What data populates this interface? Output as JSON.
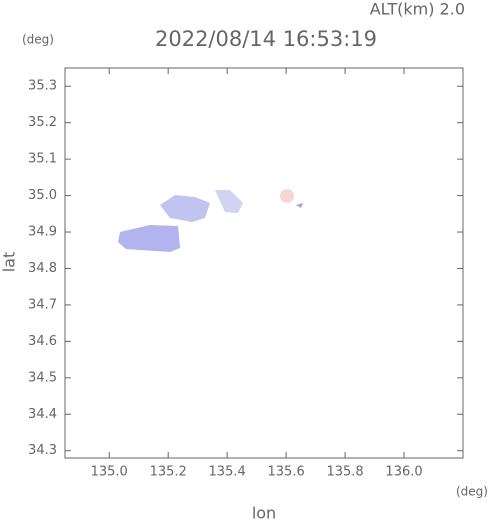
{
  "chart_data": {
    "type": "map",
    "title": "2022/08/14 16:53:19",
    "subtitle": "ALT(km) 2.0",
    "x_label": "lon",
    "y_label": "lat",
    "x_unit": "(deg)",
    "y_unit": "(deg)",
    "xlim": [
      134.85,
      136.2
    ],
    "ylim": [
      34.28,
      35.35
    ],
    "xticks": [
      {
        "value": 135,
        "label": "135.0"
      },
      135.2,
      135.4,
      135.6,
      135.8,
      {
        "value": 136,
        "label": "136.0"
      }
    ],
    "yticks": [
      34.3,
      34.4,
      34.5,
      34.6,
      34.7,
      34.8,
      34.9,
      {
        "value": 35,
        "label": "35.0"
      },
      35.1,
      35.2,
      35.3
    ],
    "grid": false
  }
}
